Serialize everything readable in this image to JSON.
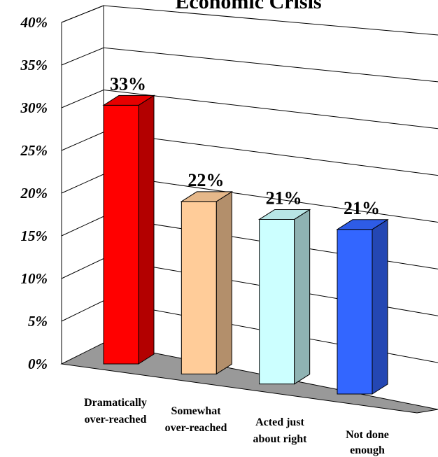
{
  "chart_data": {
    "type": "bar",
    "title": "Economic Crisis",
    "categories": [
      [
        "Dramatically",
        "over-reached"
      ],
      [
        "Somewhat",
        "over-reached"
      ],
      [
        "Acted just",
        "about right"
      ],
      [
        "Not done",
        "enough"
      ]
    ],
    "values": [
      33,
      22,
      21,
      21
    ],
    "data_labels": [
      "33%",
      "22%",
      "21%",
      "21%"
    ],
    "y_ticks": [
      "0%",
      "5%",
      "10%",
      "15%",
      "20%",
      "25%",
      "30%",
      "35%",
      "40%"
    ],
    "ylim": [
      0,
      40
    ],
    "grid": true,
    "colors": {
      "front": [
        "#ff0000",
        "#ffcc99",
        "#ccffff",
        "#3366ff"
      ],
      "side": [
        "#b30000",
        "#b38f6b",
        "#8fb3b3",
        "#2447b3"
      ],
      "top": [
        "#e60000",
        "#e6b88a",
        "#b8e6e6",
        "#2e5ce6"
      ],
      "floor": "#999999"
    }
  }
}
